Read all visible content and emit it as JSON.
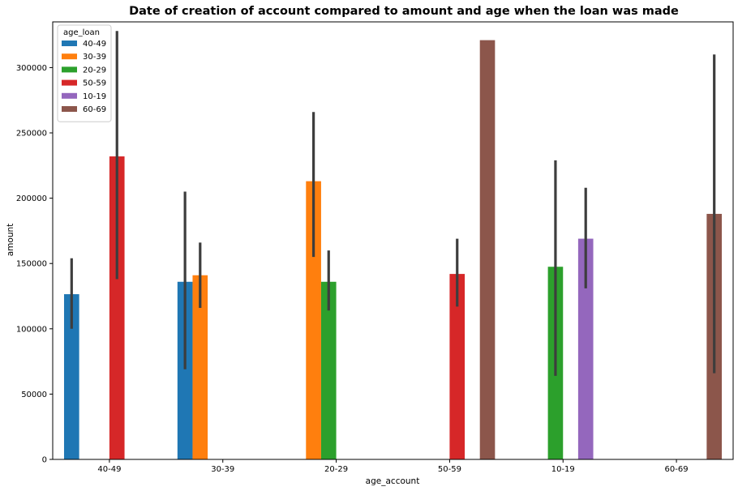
{
  "chart_data": {
    "type": "bar",
    "title": "Date of creation of account compared to amount and age when the loan was made",
    "xlabel": "age_account",
    "ylabel": "amount",
    "categories": [
      "40-49",
      "30-39",
      "20-29",
      "50-59",
      "10-19",
      "60-69"
    ],
    "ylim": [
      0,
      335000
    ],
    "yticks": [
      0,
      50000,
      100000,
      150000,
      200000,
      250000,
      300000
    ],
    "legend": {
      "title": "age_loan",
      "placement": "top-left"
    },
    "series": [
      {
        "name": "40-49",
        "color": "#1f77b4",
        "values": [
          126500,
          136000,
          null,
          null,
          null,
          null
        ],
        "err_low": [
          100000,
          69000,
          null,
          null,
          null,
          null
        ],
        "err_high": [
          154000,
          205000,
          null,
          null,
          null,
          null
        ]
      },
      {
        "name": "30-39",
        "color": "#ff7f0e",
        "values": [
          null,
          141000,
          213000,
          null,
          null,
          null
        ],
        "err_low": [
          null,
          116000,
          155000,
          null,
          null,
          null
        ],
        "err_high": [
          null,
          166000,
          266000,
          null,
          null,
          null
        ]
      },
      {
        "name": "20-29",
        "color": "#2ca02c",
        "values": [
          null,
          null,
          136000,
          null,
          147500,
          null
        ],
        "err_low": [
          null,
          null,
          114000,
          null,
          64000,
          null
        ],
        "err_high": [
          null,
          null,
          160000,
          null,
          229000,
          null
        ]
      },
      {
        "name": "50-59",
        "color": "#d62728",
        "values": [
          232000,
          null,
          null,
          142000,
          null,
          null
        ],
        "err_low": [
          138000,
          null,
          null,
          117000,
          null,
          null
        ],
        "err_high": [
          328000,
          null,
          null,
          169000,
          null,
          null
        ]
      },
      {
        "name": "10-19",
        "color": "#9467bd",
        "values": [
          null,
          null,
          null,
          null,
          169000,
          null
        ],
        "err_low": [
          null,
          null,
          null,
          null,
          131000,
          null
        ],
        "err_high": [
          null,
          null,
          null,
          null,
          208000,
          null
        ]
      },
      {
        "name": "60-69",
        "color": "#8c564b",
        "values": [
          null,
          null,
          null,
          321000,
          null,
          188000
        ],
        "err_low": [
          null,
          null,
          null,
          null,
          null,
          66000
        ],
        "err_high": [
          null,
          null,
          null,
          null,
          null,
          310000
        ]
      }
    ]
  }
}
